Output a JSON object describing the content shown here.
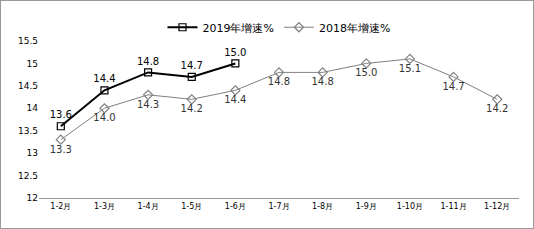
{
  "chart_data": {
    "type": "line",
    "categories": [
      "1-2月",
      "1-3月",
      "1-4月",
      "1-5月",
      "1-6月",
      "1-7月",
      "1-8月",
      "1-9月",
      "1-10月",
      "1-11月",
      "1-12月"
    ],
    "series": [
      {
        "name": "2019年增速%",
        "color": "#000000",
        "marker": "square",
        "line_style": "solid",
        "values": [
          13.6,
          14.4,
          14.8,
          14.7,
          15.0,
          null,
          null,
          null,
          null,
          null,
          null
        ],
        "value_labels": [
          "13.6",
          "14.4",
          "14.8",
          "14.7",
          "15.0",
          null,
          null,
          null,
          null,
          null,
          null
        ]
      },
      {
        "name": "2018年增速%",
        "color": "#808080",
        "marker": "diamond",
        "line_style": "solid",
        "values": [
          13.3,
          14.0,
          14.3,
          14.2,
          14.4,
          14.8,
          14.8,
          15.0,
          15.1,
          14.7,
          14.2
        ],
        "value_labels": [
          "13.3",
          "14.0",
          "14.3",
          "14.2",
          "14.4",
          "14.8",
          "14.8",
          "15.0",
          "15.1",
          "14.7",
          "14.2"
        ]
      }
    ],
    "ylim": [
      12,
      15.5
    ],
    "yticks": [
      12,
      12.5,
      13,
      13.5,
      14,
      14.5,
      15,
      15.5
    ],
    "grid": false,
    "legend": "top",
    "data_labels": true
  }
}
